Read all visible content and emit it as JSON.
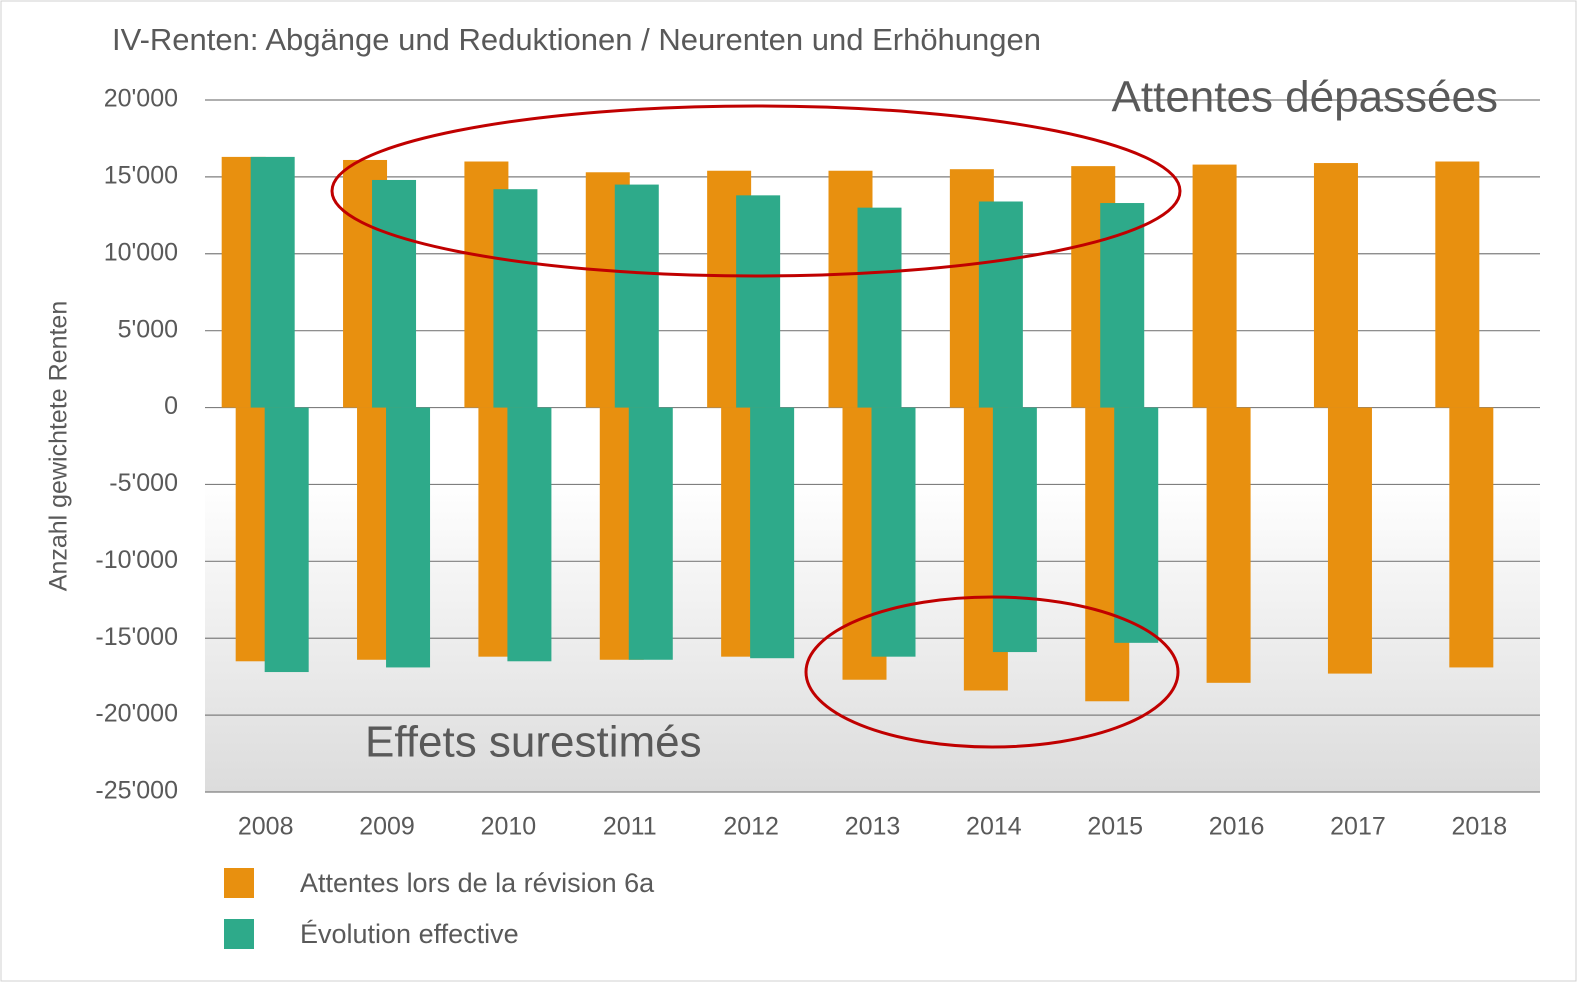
{
  "chart_data": {
    "type": "bar",
    "title": "IV-Renten: Abgänge und Reduktionen / Neurenten und Erhöhungen",
    "y_label": "Anzahl gewichtete Renten",
    "categories": [
      "2008",
      "2009",
      "2010",
      "2011",
      "2012",
      "2013",
      "2014",
      "2015",
      "2016",
      "2017",
      "2018"
    ],
    "series": [
      {
        "name": "Attentes lors de la révision 6a",
        "color": "#e8900f",
        "values": [
          16300,
          16100,
          16000,
          15300,
          15400,
          15400,
          15500,
          15700,
          15800,
          15900,
          16000
        ],
        "values_negative": [
          -16500,
          -16400,
          -16200,
          -16400,
          -16200,
          -17700,
          -18400,
          -19100,
          -17900,
          -17300,
          -16900
        ]
      },
      {
        "name": "Évolution effective",
        "color": "#2eaa8a",
        "values": [
          16300,
          14800,
          14200,
          14500,
          13800,
          13000,
          13400,
          13300,
          null,
          null,
          null
        ],
        "values_negative": [
          -17200,
          -16900,
          -16500,
          -16400,
          -16300,
          -16200,
          -15900,
          -15300,
          null,
          null,
          null
        ]
      }
    ],
    "ylim": [
      -25000,
      20000
    ],
    "yticks": [
      {
        "value": -25000,
        "label": "-25'000"
      },
      {
        "value": -20000,
        "label": "-20'000"
      },
      {
        "value": -15000,
        "label": "-15'000"
      },
      {
        "value": -10000,
        "label": "-10'000"
      },
      {
        "value": -5000,
        "label": "-5'000"
      },
      0,
      {
        "value": 5000,
        "label": "5'000"
      },
      {
        "value": 10000,
        "label": "10'000"
      },
      {
        "value": 15000,
        "label": "15'000"
      },
      {
        "value": 20000,
        "label": "20'000"
      }
    ],
    "grid": true,
    "annotations": [
      "Attentes dépassées",
      "Effets surestimés"
    ],
    "annotation_color": "#c00000"
  }
}
